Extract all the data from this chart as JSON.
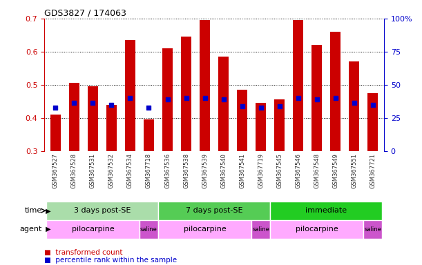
{
  "title": "GDS3827 / 174063",
  "samples": [
    "GSM367527",
    "GSM367528",
    "GSM367531",
    "GSM367532",
    "GSM367534",
    "GSM367718",
    "GSM367536",
    "GSM367538",
    "GSM367539",
    "GSM367540",
    "GSM367541",
    "GSM367719",
    "GSM367545",
    "GSM367546",
    "GSM367548",
    "GSM367549",
    "GSM367551",
    "GSM367721"
  ],
  "bar_values": [
    0.41,
    0.505,
    0.495,
    0.44,
    0.635,
    0.395,
    0.61,
    0.645,
    0.695,
    0.585,
    0.485,
    0.445,
    0.455,
    0.695,
    0.62,
    0.66,
    0.57,
    0.475
  ],
  "blue_dot_values": [
    0.43,
    0.445,
    0.445,
    0.44,
    0.46,
    0.43,
    0.455,
    0.46,
    0.46,
    0.455,
    0.435,
    0.43,
    0.435,
    0.46,
    0.455,
    0.46,
    0.445,
    0.44
  ],
  "ylim_left": [
    0.3,
    0.7
  ],
  "ylim_right": [
    0,
    100
  ],
  "yticks_left": [
    0.3,
    0.4,
    0.5,
    0.6,
    0.7
  ],
  "yticks_right": [
    0,
    25,
    50,
    75,
    100
  ],
  "bar_color": "#cc0000",
  "dot_color": "#0000cc",
  "bg_color": "#ffffff",
  "time_groups": [
    {
      "label": "3 days post-SE",
      "start": 0,
      "end": 6,
      "color": "#aaddaa"
    },
    {
      "label": "7 days post-SE",
      "start": 6,
      "end": 12,
      "color": "#55cc55"
    },
    {
      "label": "immediate",
      "start": 12,
      "end": 18,
      "color": "#22cc22"
    }
  ],
  "agent_groups": [
    {
      "label": "pilocarpine",
      "start": 0,
      "end": 5,
      "color": "#ffaaff"
    },
    {
      "label": "saline",
      "start": 5,
      "end": 6,
      "color": "#cc55cc"
    },
    {
      "label": "pilocarpine",
      "start": 6,
      "end": 11,
      "color": "#ffaaff"
    },
    {
      "label": "saline",
      "start": 11,
      "end": 12,
      "color": "#cc55cc"
    },
    {
      "label": "pilocarpine",
      "start": 12,
      "end": 17,
      "color": "#ffaaff"
    },
    {
      "label": "saline",
      "start": 17,
      "end": 18,
      "color": "#cc55cc"
    }
  ],
  "tick_label_color": "#333333",
  "left_axis_color": "#cc0000",
  "right_axis_color": "#0000cc"
}
